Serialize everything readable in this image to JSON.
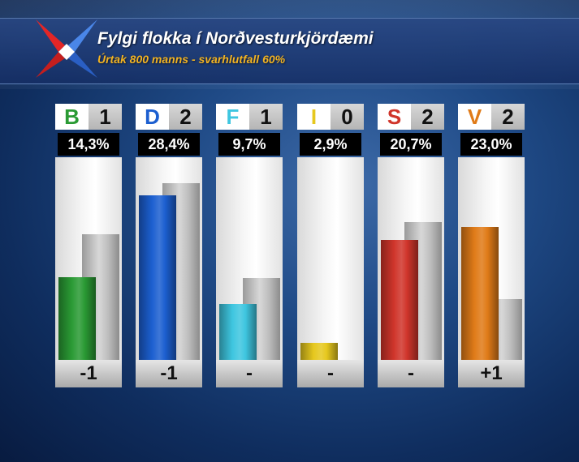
{
  "header": {
    "title": "Fylgi flokka í Norðvesturkjördæmi",
    "subtitle": "Úrtak 800 manns - svarhlutfall 60%"
  },
  "colors": {
    "B": "#2a9a34",
    "D": "#1c5fd0",
    "F": "#3ec6e0",
    "I": "#e6c81e",
    "S": "#d0352b",
    "V": "#e07b18",
    "previous": "#b8b8b8"
  },
  "parties": [
    {
      "letter": "B",
      "seats": "1",
      "percent": "14,3%",
      "change": "-1"
    },
    {
      "letter": "D",
      "seats": "2",
      "percent": "28,4%",
      "change": "-1"
    },
    {
      "letter": "F",
      "seats": "1",
      "percent": "9,7%",
      "change": "-"
    },
    {
      "letter": "I",
      "seats": "0",
      "percent": "2,9%",
      "change": "-"
    },
    {
      "letter": "S",
      "seats": "2",
      "percent": "20,7%",
      "change": "-"
    },
    {
      "letter": "V",
      "seats": "2",
      "percent": "23,0%",
      "change": "+1"
    }
  ],
  "chart_data": {
    "type": "bar",
    "categories": [
      "B",
      "D",
      "F",
      "I",
      "S",
      "V"
    ],
    "series": [
      {
        "values": [
          14.3,
          28.4,
          9.7,
          2.9,
          20.7,
          23.0
        ]
      },
      {
        "values": [
          21.7,
          30.5,
          14.2,
          0,
          23.8,
          10.5
        ]
      }
    ],
    "ylim": [
      0,
      35
    ]
  }
}
